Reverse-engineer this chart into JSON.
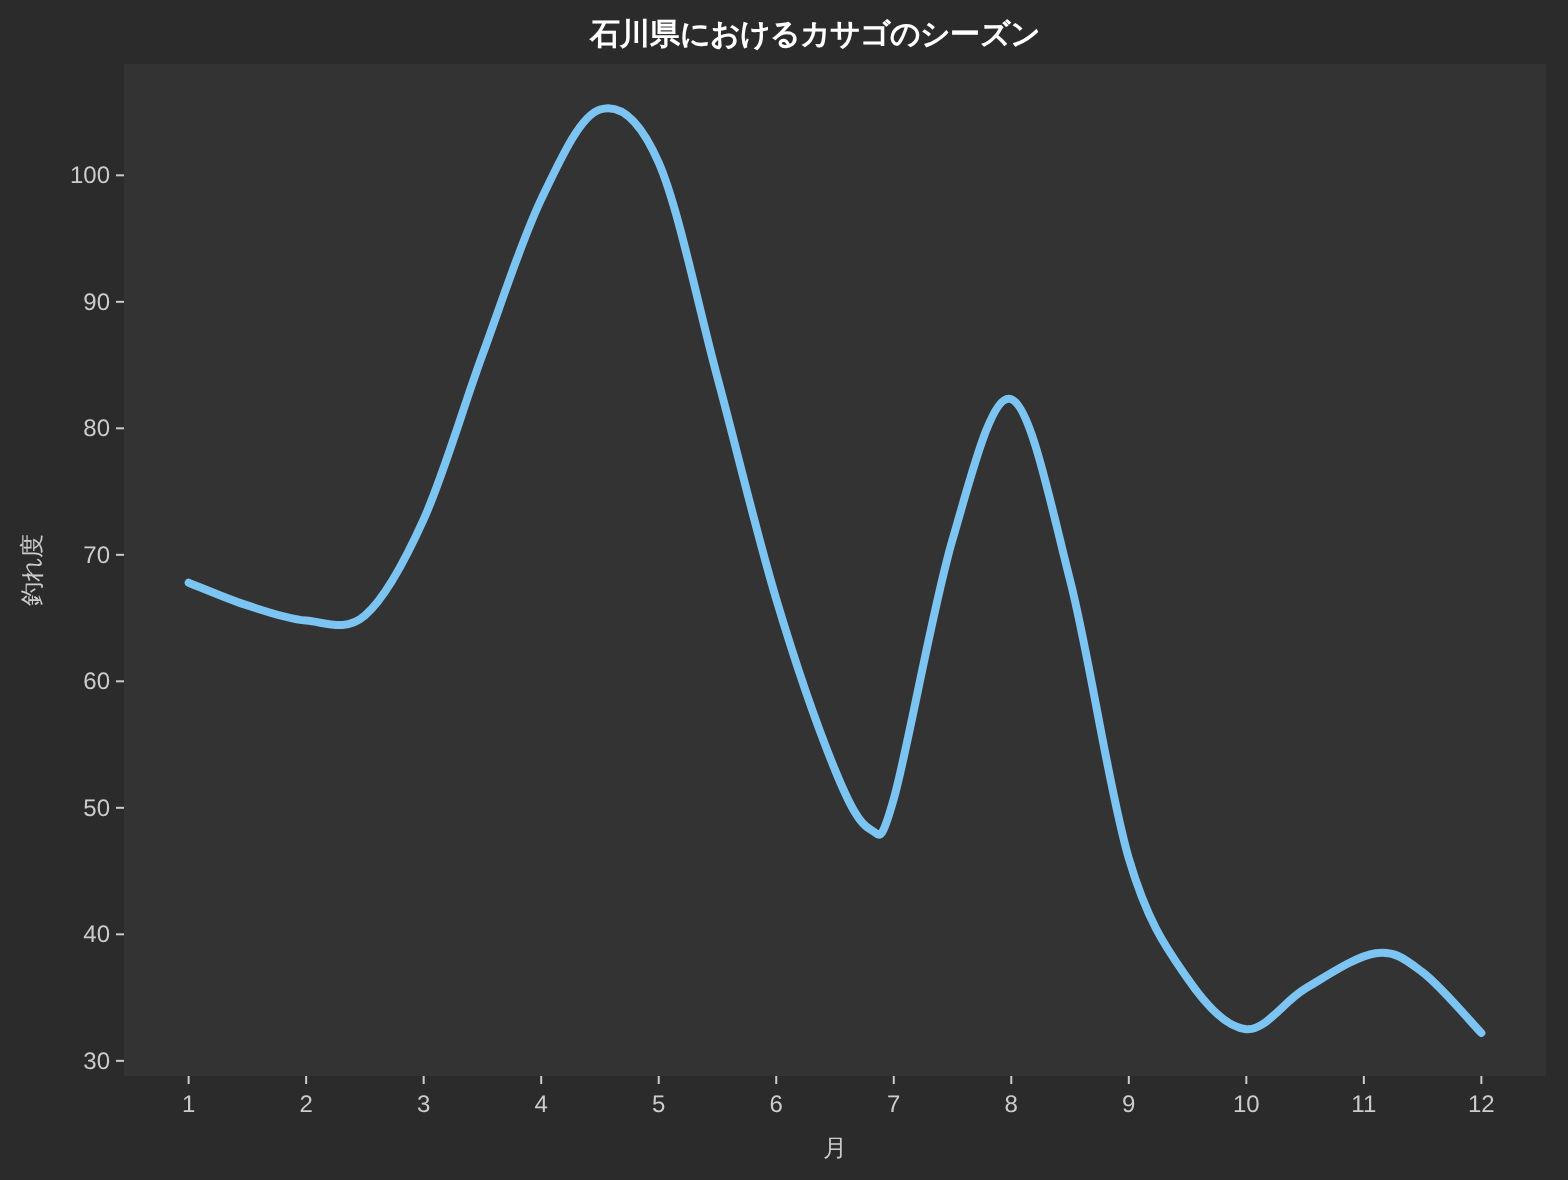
{
  "chart_data": {
    "type": "line",
    "title": "石川県におけるカサゴのシーズン",
    "xlabel": "月",
    "ylabel": "釣れ度",
    "series": [
      {
        "color": "#7cc4f2",
        "x": [
          1,
          1.5,
          2,
          2.5,
          3,
          3.5,
          4,
          4.5,
          5,
          5.5,
          6,
          6.5,
          6.8,
          7,
          7.5,
          8,
          8.5,
          9,
          9.5,
          10,
          10.5,
          11.1,
          11.5,
          12
        ],
        "values": [
          67.8,
          66,
          64.8,
          65.2,
          72.8,
          85.8,
          98.1,
          105.2,
          101,
          84,
          66.5,
          53,
          48.3,
          50.7,
          71.2,
          82.3,
          68,
          46,
          36.5,
          32.5,
          35.7,
          38.5,
          37,
          32.2
        ]
      }
    ],
    "xlim": [
      0.45,
      12.55
    ],
    "ylim": [
      28.8,
      108.8
    ],
    "xticks": [
      1,
      2,
      3,
      4,
      5,
      6,
      7,
      8,
      9,
      10,
      11,
      12
    ],
    "yticks": [
      30,
      40,
      50,
      60,
      70,
      80,
      90,
      100
    ],
    "grid": false,
    "marker": "none",
    "line_style": "solid"
  }
}
